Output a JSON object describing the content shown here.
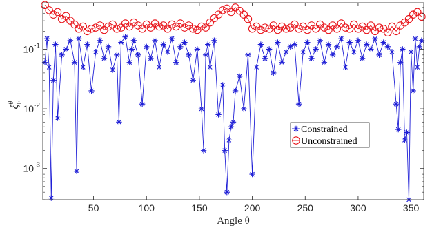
{
  "chart_data": {
    "type": "line",
    "xlabel": "Angle θ",
    "ylabel": "ξ",
    "ylabel_sup": "θ",
    "ylabel_sub": "E",
    "x_range": [
      2,
      362
    ],
    "y_range": [
      0.0003,
      0.6
    ],
    "y_scale": "log",
    "x_ticks": [
      50,
      100,
      150,
      200,
      250,
      300,
      350
    ],
    "y_ticks": [
      {
        "value": 0.1,
        "base": "10",
        "exp": "-1"
      },
      {
        "value": 0.01,
        "base": "10",
        "exp": "-2"
      },
      {
        "value": 0.001,
        "base": "10",
        "exp": "-3"
      }
    ],
    "legend_position": "center-right",
    "series": [
      {
        "name": "Constrained",
        "color": "#1f1fd6",
        "marker": "asterisk",
        "x": [
          4,
          6,
          8,
          10,
          12,
          14,
          16,
          20,
          24,
          28,
          32,
          34,
          36,
          40,
          44,
          48,
          52,
          56,
          60,
          64,
          68,
          72,
          74,
          76,
          80,
          84,
          86,
          88,
          92,
          96,
          100,
          104,
          108,
          112,
          116,
          120,
          124,
          128,
          132,
          136,
          140,
          144,
          148,
          152,
          154,
          156,
          158,
          160,
          164,
          168,
          172,
          174,
          176,
          178,
          180,
          182,
          184,
          188,
          192,
          196,
          200,
          204,
          208,
          212,
          216,
          220,
          224,
          228,
          232,
          236,
          240,
          244,
          248,
          252,
          256,
          260,
          264,
          268,
          272,
          276,
          280,
          284,
          288,
          292,
          296,
          300,
          304,
          308,
          312,
          316,
          320,
          324,
          328,
          332,
          336,
          338,
          340,
          342,
          344,
          346,
          348,
          350,
          352,
          354,
          356,
          358,
          360
        ],
        "y": [
          0.06,
          0.15,
          0.05,
          0.00032,
          0.03,
          0.12,
          0.007,
          0.08,
          0.1,
          0.14,
          0.06,
          0.0009,
          0.15,
          0.05,
          0.12,
          0.02,
          0.09,
          0.14,
          0.07,
          0.11,
          0.045,
          0.08,
          0.006,
          0.13,
          0.16,
          0.06,
          0.1,
          0.14,
          0.08,
          0.012,
          0.11,
          0.07,
          0.14,
          0.05,
          0.12,
          0.09,
          0.15,
          0.06,
          0.11,
          0.13,
          0.08,
          0.03,
          0.1,
          0.01,
          0.002,
          0.08,
          0.12,
          0.05,
          0.14,
          0.008,
          0.025,
          0.002,
          0.0004,
          0.003,
          0.005,
          0.006,
          0.02,
          0.035,
          0.01,
          0.08,
          0.0008,
          0.05,
          0.12,
          0.07,
          0.1,
          0.04,
          0.13,
          0.06,
          0.09,
          0.11,
          0.12,
          0.012,
          0.09,
          0.13,
          0.07,
          0.1,
          0.14,
          0.06,
          0.12,
          0.08,
          0.11,
          0.15,
          0.05,
          0.13,
          0.09,
          0.14,
          0.07,
          0.12,
          0.1,
          0.15,
          0.08,
          0.13,
          0.11,
          0.09,
          0.012,
          0.0045,
          0.06,
          0.1,
          0.003,
          0.004,
          0.0003,
          0.09,
          0.02,
          0.15,
          0.05,
          0.11,
          0.14
        ]
      },
      {
        "name": "Unconstrained",
        "color": "#e8151b",
        "marker": "circle",
        "x": [
          4,
          8,
          12,
          16,
          20,
          24,
          28,
          32,
          36,
          40,
          44,
          48,
          52,
          56,
          60,
          64,
          68,
          72,
          76,
          80,
          84,
          88,
          92,
          96,
          100,
          104,
          108,
          112,
          116,
          120,
          124,
          128,
          132,
          136,
          140,
          144,
          148,
          152,
          156,
          160,
          164,
          168,
          172,
          176,
          180,
          184,
          188,
          192,
          196,
          200,
          204,
          208,
          212,
          216,
          220,
          224,
          228,
          232,
          236,
          240,
          244,
          248,
          252,
          256,
          260,
          264,
          268,
          272,
          276,
          280,
          284,
          288,
          292,
          296,
          300,
          304,
          308,
          312,
          316,
          320,
          324,
          328,
          332,
          336,
          340,
          344,
          348,
          352,
          356,
          360
        ],
        "y": [
          0.55,
          0.45,
          0.38,
          0.42,
          0.32,
          0.36,
          0.3,
          0.26,
          0.22,
          0.24,
          0.2,
          0.22,
          0.23,
          0.25,
          0.21,
          0.24,
          0.26,
          0.22,
          0.23,
          0.27,
          0.24,
          0.28,
          0.25,
          0.22,
          0.26,
          0.23,
          0.27,
          0.24,
          0.25,
          0.22,
          0.26,
          0.24,
          0.27,
          0.23,
          0.25,
          0.22,
          0.21,
          0.24,
          0.23,
          0.28,
          0.33,
          0.38,
          0.45,
          0.48,
          0.42,
          0.5,
          0.44,
          0.38,
          0.32,
          0.22,
          0.24,
          0.21,
          0.23,
          0.22,
          0.25,
          0.21,
          0.24,
          0.22,
          0.23,
          0.26,
          0.22,
          0.24,
          0.21,
          0.25,
          0.22,
          0.26,
          0.23,
          0.21,
          0.25,
          0.22,
          0.27,
          0.23,
          0.22,
          0.26,
          0.22,
          0.24,
          0.21,
          0.25,
          0.2,
          0.23,
          0.22,
          0.19,
          0.24,
          0.2,
          0.25,
          0.28,
          0.32,
          0.38,
          0.42,
          0.35
        ]
      }
    ]
  }
}
